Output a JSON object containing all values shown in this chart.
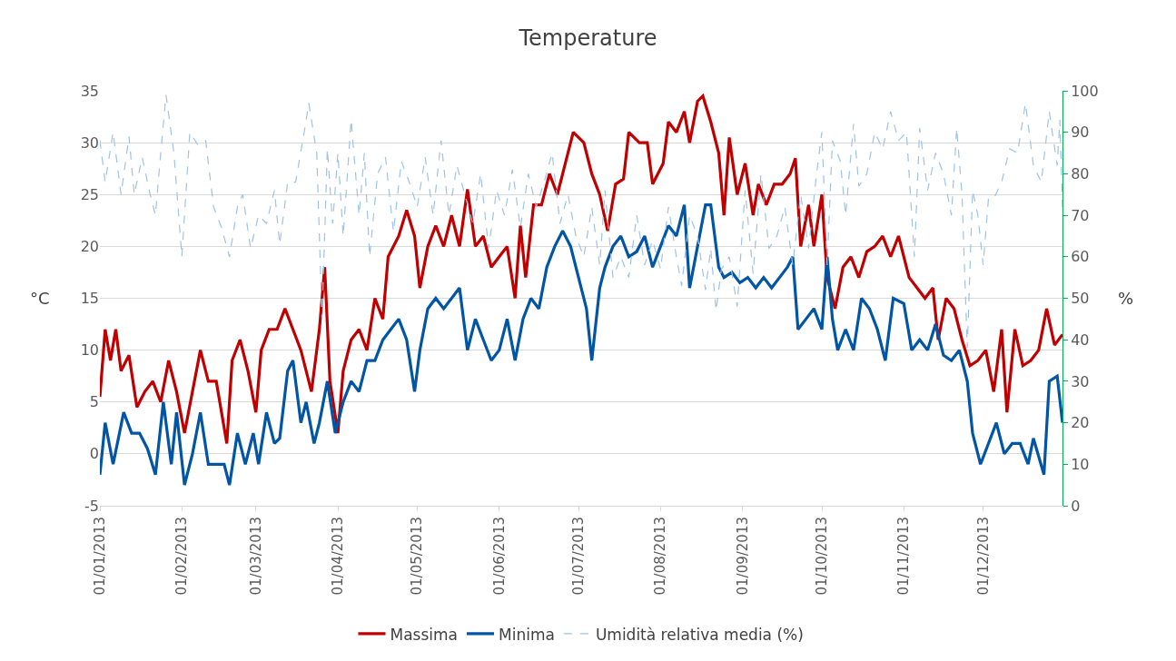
{
  "chart_data": {
    "type": "line",
    "title": "Temperature",
    "ylabel": "°C",
    "y2label": "%",
    "xlim": [
      "2013-01-01",
      "2013-12-31"
    ],
    "xticks": [
      {
        "value": "2013-01-01",
        "label": "01/01/2013"
      },
      {
        "value": "2013-02-01",
        "label": "01/02/2013"
      },
      {
        "value": "2013-03-01",
        "label": "01/03/2013"
      },
      {
        "value": "2013-04-01",
        "label": "01/04/2013"
      },
      {
        "value": "2013-05-01",
        "label": "01/05/2013"
      },
      {
        "value": "2013-06-01",
        "label": "01/06/2013"
      },
      {
        "value": "2013-07-01",
        "label": "01/07/2013"
      },
      {
        "value": "2013-08-01",
        "label": "01/08/2013"
      },
      {
        "value": "2013-09-01",
        "label": "01/09/2013"
      },
      {
        "value": "2013-10-01",
        "label": "01/10/2013"
      },
      {
        "value": "2013-11-01",
        "label": "01/11/2013"
      },
      {
        "value": "2013-12-01",
        "label": "01/12/2013"
      }
    ],
    "ylim": [
      -5,
      35
    ],
    "yticks": [
      -5,
      0,
      5,
      10,
      15,
      20,
      25,
      30,
      35
    ],
    "y2lim": [
      0,
      100
    ],
    "y2ticks": [
      0,
      10,
      20,
      30,
      40,
      50,
      60,
      70,
      80,
      90,
      100
    ],
    "grid": "y",
    "legend": "bottom",
    "marker": "none",
    "series": [
      {
        "name": "Massima",
        "color": "#c00000",
        "line_style": "solid",
        "x": [
          "2013-01-01",
          "2013-01-03",
          "2013-01-05",
          "2013-01-07",
          "2013-01-09",
          "2013-01-12",
          "2013-01-15",
          "2013-01-18",
          "2013-01-21",
          "2013-01-24",
          "2013-01-27",
          "2013-01-30",
          "2013-02-02",
          "2013-02-05",
          "2013-02-08",
          "2013-02-11",
          "2013-02-14",
          "2013-02-18",
          "2013-02-20",
          "2013-02-23",
          "2013-02-26",
          "2013-03-01",
          "2013-03-03",
          "2013-03-06",
          "2013-03-09",
          "2013-03-12",
          "2013-03-15",
          "2013-03-18",
          "2013-03-22",
          "2013-03-25",
          "2013-03-27",
          "2013-03-29",
          "2013-04-01",
          "2013-04-03",
          "2013-04-06",
          "2013-04-09",
          "2013-04-12",
          "2013-04-15",
          "2013-04-18",
          "2013-04-20",
          "2013-04-24",
          "2013-04-27",
          "2013-04-30",
          "2013-05-02",
          "2013-05-05",
          "2013-05-08",
          "2013-05-11",
          "2013-05-14",
          "2013-05-17",
          "2013-05-20",
          "2013-05-23",
          "2013-05-26",
          "2013-05-29",
          "2013-06-01",
          "2013-06-04",
          "2013-06-07",
          "2013-06-09",
          "2013-06-11",
          "2013-06-14",
          "2013-06-17",
          "2013-06-20",
          "2013-06-23",
          "2013-06-26",
          "2013-06-29",
          "2013-07-03",
          "2013-07-06",
          "2013-07-09",
          "2013-07-12",
          "2013-07-15",
          "2013-07-18",
          "2013-07-20",
          "2013-07-24",
          "2013-07-27",
          "2013-07-29",
          "2013-08-02",
          "2013-08-04",
          "2013-08-07",
          "2013-08-10",
          "2013-08-12",
          "2013-08-15",
          "2013-08-17",
          "2013-08-20",
          "2013-08-23",
          "2013-08-25",
          "2013-08-27",
          "2013-08-30",
          "2013-09-02",
          "2013-09-05",
          "2013-09-07",
          "2013-09-10",
          "2013-09-13",
          "2013-09-16",
          "2013-09-19",
          "2013-09-21",
          "2013-09-23",
          "2013-09-26",
          "2013-09-28",
          "2013-10-01",
          "2013-10-03",
          "2013-10-06",
          "2013-10-09",
          "2013-10-12",
          "2013-10-15",
          "2013-10-18",
          "2013-10-21",
          "2013-10-24",
          "2013-10-27",
          "2013-10-30",
          "2013-11-03",
          "2013-11-06",
          "2013-11-09",
          "2013-11-12",
          "2013-11-14",
          "2013-11-17",
          "2013-11-20",
          "2013-11-23",
          "2013-11-26",
          "2013-11-29",
          "2013-12-02",
          "2013-12-05",
          "2013-12-08",
          "2013-12-10",
          "2013-12-13",
          "2013-12-16",
          "2013-12-19",
          "2013-12-22",
          "2013-12-25",
          "2013-12-28",
          "2013-12-31"
        ],
        "values": [
          5.5,
          12,
          9,
          12,
          8,
          9.5,
          4.5,
          6,
          7,
          5,
          9,
          6,
          2,
          6,
          10,
          7,
          7,
          1,
          9,
          11,
          8,
          4,
          10,
          12,
          12,
          14,
          12,
          10,
          6,
          12,
          18,
          7,
          2,
          8,
          11,
          12,
          10,
          15,
          13,
          19,
          21,
          23.5,
          21,
          16,
          20,
          22,
          20,
          23,
          20,
          25.5,
          20,
          21,
          18,
          19,
          20,
          15,
          22,
          17,
          24,
          24,
          27,
          25,
          28,
          31,
          30,
          27,
          25,
          21.5,
          26,
          26.5,
          31,
          30,
          30,
          26,
          28,
          32,
          31,
          33,
          30,
          34,
          34.5,
          32,
          29,
          23,
          30.5,
          25,
          28,
          23,
          26,
          24,
          26,
          26,
          27,
          28.5,
          20,
          24,
          20,
          25,
          17,
          14,
          18,
          19,
          17,
          19.5,
          20,
          21,
          19,
          21,
          17,
          16,
          15,
          16,
          11,
          15,
          14,
          11,
          8.5,
          9,
          10,
          6,
          12,
          4,
          12,
          8.5,
          9,
          10,
          14,
          10.5,
          11.5
        ]
      },
      {
        "name": "Minima",
        "color": "#0055a5",
        "line_style": "solid",
        "x": [
          "2013-01-01",
          "2013-01-03",
          "2013-01-06",
          "2013-01-10",
          "2013-01-13",
          "2013-01-16",
          "2013-01-19",
          "2013-01-22",
          "2013-01-25",
          "2013-01-28",
          "2013-01-30",
          "2013-02-02",
          "2013-02-05",
          "2013-02-08",
          "2013-02-11",
          "2013-02-14",
          "2013-02-17",
          "2013-02-19",
          "2013-02-22",
          "2013-02-25",
          "2013-02-28",
          "2013-03-02",
          "2013-03-05",
          "2013-03-08",
          "2013-03-10",
          "2013-03-13",
          "2013-03-15",
          "2013-03-18",
          "2013-03-20",
          "2013-03-23",
          "2013-03-25",
          "2013-03-28",
          "2013-03-31",
          "2013-04-03",
          "2013-04-06",
          "2013-04-09",
          "2013-04-12",
          "2013-04-15",
          "2013-04-18",
          "2013-04-21",
          "2013-04-24",
          "2013-04-27",
          "2013-04-30",
          "2013-05-02",
          "2013-05-05",
          "2013-05-08",
          "2013-05-11",
          "2013-05-14",
          "2013-05-17",
          "2013-05-20",
          "2013-05-23",
          "2013-05-26",
          "2013-05-29",
          "2013-06-01",
          "2013-06-04",
          "2013-06-07",
          "2013-06-10",
          "2013-06-13",
          "2013-06-16",
          "2013-06-19",
          "2013-06-22",
          "2013-06-25",
          "2013-06-28",
          "2013-07-01",
          "2013-07-04",
          "2013-07-06",
          "2013-07-09",
          "2013-07-11",
          "2013-07-14",
          "2013-07-17",
          "2013-07-20",
          "2013-07-23",
          "2013-07-26",
          "2013-07-29",
          "2013-08-01",
          "2013-08-04",
          "2013-08-07",
          "2013-08-10",
          "2013-08-12",
          "2013-08-15",
          "2013-08-18",
          "2013-08-20",
          "2013-08-23",
          "2013-08-25",
          "2013-08-28",
          "2013-08-31",
          "2013-09-03",
          "2013-09-06",
          "2013-09-09",
          "2013-09-12",
          "2013-09-15",
          "2013-09-18",
          "2013-09-20",
          "2013-09-22",
          "2013-09-25",
          "2013-09-28",
          "2013-10-01",
          "2013-10-03",
          "2013-10-05",
          "2013-10-07",
          "2013-10-10",
          "2013-10-13",
          "2013-10-16",
          "2013-10-19",
          "2013-10-22",
          "2013-10-25",
          "2013-10-28",
          "2013-11-01",
          "2013-11-04",
          "2013-11-07",
          "2013-11-10",
          "2013-11-13",
          "2013-11-16",
          "2013-11-19",
          "2013-11-22",
          "2013-11-25",
          "2013-11-27",
          "2013-11-30",
          "2013-12-03",
          "2013-12-06",
          "2013-12-09",
          "2013-12-12",
          "2013-12-15",
          "2013-12-18",
          "2013-12-20",
          "2013-12-24",
          "2013-12-26",
          "2013-12-29",
          "2013-12-31"
        ],
        "values": [
          -2,
          3,
          -1,
          4,
          2,
          2,
          0.5,
          -2,
          5,
          -1,
          4,
          -3,
          0,
          4,
          -1,
          -1,
          -1,
          -3,
          2,
          -1,
          2,
          -1,
          4,
          1,
          1.5,
          8,
          9,
          3,
          5,
          1,
          3,
          7,
          2,
          5,
          7,
          6,
          9,
          9,
          11,
          12,
          13,
          11,
          6,
          10,
          14,
          15,
          14,
          15,
          16,
          10,
          13,
          11,
          9,
          10,
          13,
          9,
          13,
          15,
          14,
          18,
          20,
          21.5,
          20,
          17,
          14,
          9,
          16,
          18,
          20,
          21,
          19,
          19.5,
          21,
          18,
          20,
          22,
          21,
          24,
          16,
          20,
          24,
          24,
          18,
          17,
          17.5,
          16.5,
          17,
          16,
          17,
          16,
          17,
          18,
          19,
          12,
          13,
          14,
          12,
          19,
          13,
          10,
          12,
          10,
          15,
          14,
          12,
          9,
          15,
          14.5,
          10,
          11,
          10,
          12.5,
          9.5,
          9,
          10,
          7,
          2,
          -1,
          1,
          3,
          0,
          1,
          1,
          -1,
          1.5,
          -2,
          7,
          7.5,
          3
        ]
      },
      {
        "name": "Umidità relativa media (%)",
        "color": "#9dc3e6",
        "line_style": "dashed",
        "axis": "y2",
        "x": [
          "2013-01-01",
          "2013-01-03",
          "2013-01-06",
          "2013-01-09",
          "2013-01-12",
          "2013-01-14",
          "2013-01-17",
          "2013-01-20",
          "2013-01-22",
          "2013-01-24",
          "2013-01-26",
          "2013-01-29",
          "2013-02-01",
          "2013-02-04",
          "2013-02-07",
          "2013-02-10",
          "2013-02-13",
          "2013-02-16",
          "2013-02-19",
          "2013-02-22",
          "2013-02-24",
          "2013-02-27",
          "2013-03-02",
          "2013-03-05",
          "2013-03-08",
          "2013-03-10",
          "2013-03-13",
          "2013-03-16",
          "2013-03-19",
          "2013-03-21",
          "2013-03-24",
          "2013-03-26",
          "2013-03-28",
          "2013-03-30",
          "2013-04-01",
          "2013-04-03",
          "2013-04-06",
          "2013-04-09",
          "2013-04-11",
          "2013-04-13",
          "2013-04-16",
          "2013-04-19",
          "2013-04-22",
          "2013-04-25",
          "2013-04-28",
          "2013-05-01",
          "2013-05-04",
          "2013-05-07",
          "2013-05-10",
          "2013-05-13",
          "2013-05-16",
          "2013-05-19",
          "2013-05-22",
          "2013-05-25",
          "2013-05-28",
          "2013-05-31",
          "2013-06-03",
          "2013-06-06",
          "2013-06-09",
          "2013-06-12",
          "2013-06-15",
          "2013-06-18",
          "2013-06-21",
          "2013-06-24",
          "2013-06-27",
          "2013-06-30",
          "2013-07-03",
          "2013-07-06",
          "2013-07-09",
          "2013-07-11",
          "2013-07-14",
          "2013-07-17",
          "2013-07-20",
          "2013-07-23",
          "2013-07-26",
          "2013-07-29",
          "2013-08-01",
          "2013-08-04",
          "2013-08-07",
          "2013-08-09",
          "2013-08-12",
          "2013-08-15",
          "2013-08-18",
          "2013-08-20",
          "2013-08-22",
          "2013-08-24",
          "2013-08-27",
          "2013-08-30",
          "2013-09-02",
          "2013-09-05",
          "2013-09-08",
          "2013-09-11",
          "2013-09-14",
          "2013-09-17",
          "2013-09-20",
          "2013-09-23",
          "2013-09-26",
          "2013-09-29",
          "2013-10-01",
          "2013-10-03",
          "2013-10-05",
          "2013-10-08",
          "2013-10-10",
          "2013-10-13",
          "2013-10-15",
          "2013-10-18",
          "2013-10-21",
          "2013-10-24",
          "2013-10-27",
          "2013-10-30",
          "2013-11-02",
          "2013-11-05",
          "2013-11-07",
          "2013-11-10",
          "2013-11-13",
          "2013-11-16",
          "2013-11-19",
          "2013-11-21",
          "2013-11-23",
          "2013-11-25",
          "2013-11-27",
          "2013-11-29",
          "2013-12-01",
          "2013-12-03",
          "2013-12-05",
          "2013-12-08",
          "2013-12-11",
          "2013-12-14",
          "2013-12-17",
          "2013-12-20",
          "2013-12-23",
          "2013-12-26",
          "2013-12-29",
          "2013-12-30",
          "2013-12-31"
        ],
        "values": [
          88,
          78,
          90,
          75,
          89,
          75,
          84,
          75,
          70,
          85,
          99,
          85,
          60,
          90,
          87,
          88,
          72,
          67,
          60,
          72,
          75,
          62,
          70,
          68,
          76,
          63,
          78,
          78,
          89,
          97,
          85,
          45,
          86,
          68,
          85,
          65,
          93,
          70,
          85,
          60,
          80,
          84,
          66,
          83,
          78,
          72,
          84,
          70,
          88,
          70,
          82,
          75,
          68,
          80,
          62,
          76,
          70,
          81,
          67,
          80,
          72,
          78,
          85,
          68,
          75,
          65,
          60,
          72,
          58,
          76,
          55,
          60,
          55,
          70,
          58,
          64,
          57,
          72,
          60,
          53,
          70,
          65,
          52,
          62,
          47,
          57,
          60,
          48,
          76,
          56,
          80,
          62,
          65,
          72,
          58,
          75,
          62,
          80,
          90,
          58,
          88,
          83,
          70,
          92,
          77,
          80,
          90,
          86,
          95,
          88,
          90,
          60,
          91,
          76,
          85,
          80,
          70,
          91,
          75,
          38,
          76,
          70,
          58,
          74,
          74,
          78,
          86,
          85,
          97,
          82,
          78,
          95,
          82,
          93,
          72
        ]
      }
    ]
  }
}
